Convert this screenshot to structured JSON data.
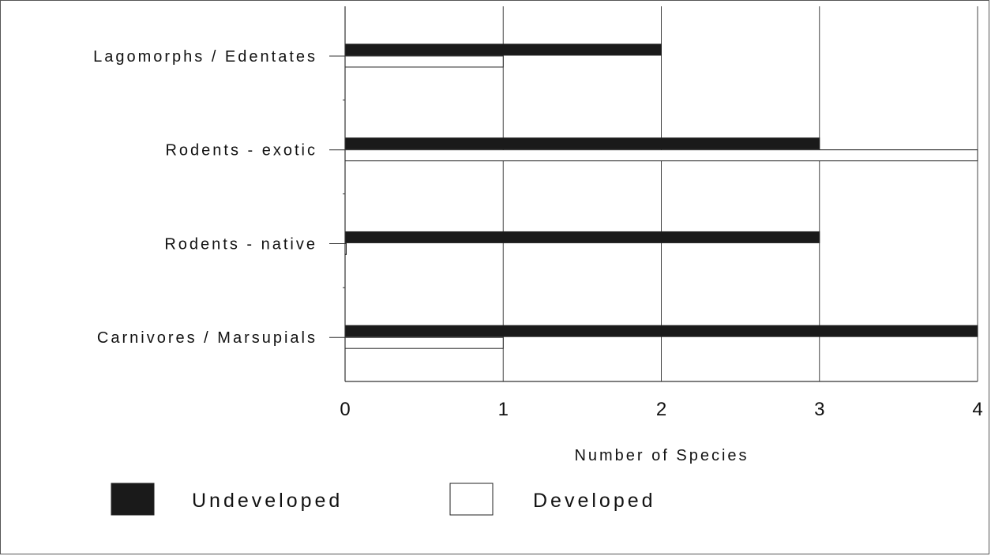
{
  "chart_data": {
    "type": "bar",
    "orientation": "horizontal",
    "categories": [
      "Lagomorphs / Edentates",
      "Rodents - exotic",
      "Rodents - native",
      "Carnivores / Marsupials"
    ],
    "series": [
      {
        "name": "Undeveloped",
        "values": [
          2,
          3,
          3,
          4
        ],
        "color": "#1a1a1a"
      },
      {
        "name": "Developed",
        "values": [
          1,
          4,
          0,
          1
        ],
        "color": "#ffffff"
      }
    ],
    "x_ticks": [
      "0",
      "1",
      "2",
      "3",
      "4"
    ],
    "xlim": [
      0,
      4
    ],
    "xlabel": "Number of Species",
    "ylabel": "",
    "title": "",
    "grid": "vertical",
    "legend_position": "bottom"
  }
}
